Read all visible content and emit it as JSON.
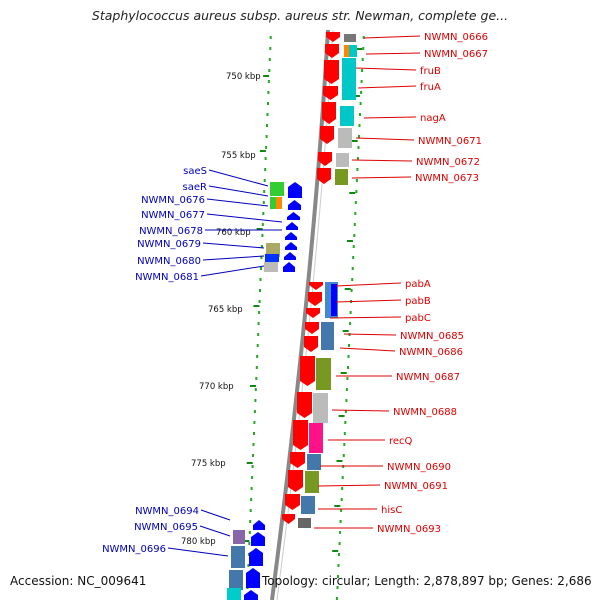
{
  "title": "Staphylococcus aureus subsp. aureus str. Newman, complete ge...",
  "footer": {
    "accession": "Accession: NC_009641",
    "topology": "Topology: circular; Length: 2,878,897 bp; Genes: 2,686"
  },
  "scale_labels": [
    "750 kbp",
    "755 kbp",
    "760 kbp",
    "765 kbp",
    "770 kbp",
    "775 kbp",
    "780 kbp"
  ],
  "colors": {
    "forward_label": "#dd0000",
    "reverse_label": "#0000bb",
    "forward_gene": "#ff0000",
    "reverse_gene": "#0000ff",
    "axis": "#888888",
    "tick": "#22aa22"
  },
  "right_labels": [
    "NWMN_0666",
    "NWMN_0667",
    "fruB",
    "fruA",
    "nagA",
    "NWMN_0671",
    "NWMN_0672",
    "NWMN_0673",
    "pabA",
    "pabB",
    "pabC",
    "NWMN_0685",
    "NWMN_0686",
    "NWMN_0687",
    "NWMN_0688",
    "recQ",
    "NWMN_0690",
    "NWMN_0691",
    "hisC",
    "NWMN_0693"
  ],
  "left_labels": [
    "saeS",
    "saeR",
    "NWMN_0676",
    "NWMN_0677",
    "NWMN_0678",
    "NWMN_0679",
    "NWMN_0680",
    "NWMN_0681",
    "NWMN_0694",
    "NWMN_0695",
    "NWMN_0696"
  ]
}
